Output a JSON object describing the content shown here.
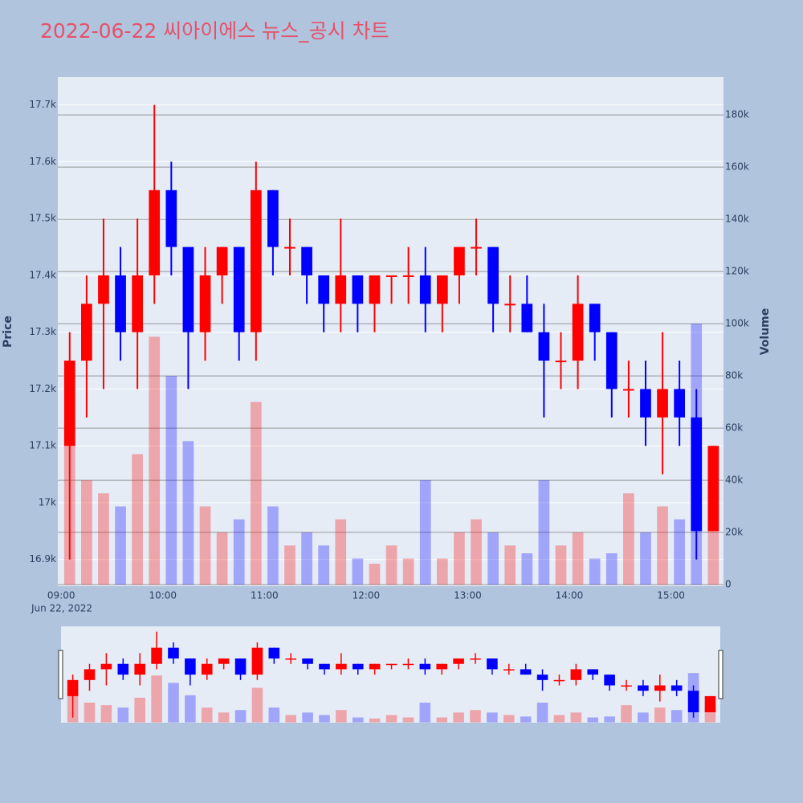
{
  "chart_data": {
    "type": "candlestick",
    "title": "2022-06-22 씨아이에스 뉴스_공시 차트",
    "y_title": "Price",
    "y2_title": "Volume",
    "x_date_label": "Jun 22, 2022",
    "increasing_color": "#ff0000",
    "decreasing_color": "#0000ff",
    "x": [
      "09:00",
      "09:10",
      "09:20",
      "09:30",
      "09:40",
      "09:50",
      "10:00",
      "10:10",
      "10:20",
      "10:30",
      "10:40",
      "10:50",
      "11:00",
      "11:10",
      "11:20",
      "11:30",
      "11:40",
      "11:50",
      "12:00",
      "12:10",
      "12:20",
      "12:30",
      "12:40",
      "12:50",
      "13:00",
      "13:10",
      "13:20",
      "13:30",
      "13:40",
      "13:50",
      "14:00",
      "14:10",
      "14:20",
      "14:30",
      "14:40",
      "14:50",
      "15:00",
      "15:10",
      "15:20"
    ],
    "open": [
      17100,
      17250,
      17350,
      17400,
      17300,
      17400,
      17550,
      17450,
      17300,
      17400,
      17450,
      17300,
      17550,
      17450,
      17450,
      17400,
      17350,
      17400,
      17350,
      17400,
      17400,
      17400,
      17350,
      17400,
      17450,
      17450,
      17350,
      17350,
      17300,
      17250,
      17250,
      17350,
      17300,
      17200,
      17200,
      17150,
      17200,
      17150,
      16950
    ],
    "high": [
      17300,
      17400,
      17500,
      17450,
      17500,
      17700,
      17600,
      17450,
      17450,
      17450,
      17450,
      17600,
      17550,
      17500,
      17450,
      17400,
      17500,
      17400,
      17400,
      17400,
      17450,
      17450,
      17400,
      17450,
      17500,
      17450,
      17400,
      17400,
      17350,
      17300,
      17400,
      17350,
      17300,
      17250,
      17250,
      17300,
      17250,
      17200,
      17100
    ],
    "low": [
      16900,
      17150,
      17200,
      17250,
      17200,
      17350,
      17400,
      17200,
      17250,
      17350,
      17250,
      17250,
      17400,
      17400,
      17350,
      17300,
      17300,
      17300,
      17300,
      17350,
      17350,
      17300,
      17300,
      17350,
      17400,
      17300,
      17300,
      17300,
      17150,
      17200,
      17200,
      17250,
      17150,
      17150,
      17100,
      17050,
      17100,
      16900,
      16950
    ],
    "close": [
      17250,
      17350,
      17400,
      17300,
      17400,
      17550,
      17450,
      17300,
      17400,
      17450,
      17300,
      17550,
      17450,
      17450,
      17400,
      17350,
      17400,
      17350,
      17400,
      17400,
      17400,
      17350,
      17400,
      17450,
      17450,
      17350,
      17350,
      17300,
      17250,
      17250,
      17350,
      17300,
      17200,
      17200,
      17150,
      17200,
      17150,
      16950,
      17100
    ],
    "volume": [
      60000,
      40000,
      35000,
      30000,
      50000,
      95000,
      80000,
      55000,
      30000,
      20000,
      25000,
      70000,
      30000,
      15000,
      20000,
      15000,
      25000,
      10000,
      8000,
      15000,
      10000,
      40000,
      10000,
      20000,
      25000,
      20000,
      15000,
      12000,
      40000,
      15000,
      20000,
      10000,
      12000,
      35000,
      20000,
      30000,
      25000,
      100000,
      30000
    ],
    "xlim": [
      "08:58",
      "15:31"
    ],
    "xticks": [
      "09:00",
      "10:00",
      "11:00",
      "12:00",
      "13:00",
      "14:00",
      "15:00"
    ],
    "ylim": [
      16853,
      17749
    ],
    "yticks": [
      {
        "value": 16900,
        "label": "16.9k"
      },
      {
        "value": 17000,
        "label": "17k"
      },
      {
        "value": 17100,
        "label": "17.1k"
      },
      {
        "value": 17200,
        "label": "17.2k"
      },
      {
        "value": 17300,
        "label": "17.3k"
      },
      {
        "value": 17400,
        "label": "17.4k"
      },
      {
        "value": 17500,
        "label": "17.5k"
      },
      {
        "value": 17600,
        "label": "17.6k"
      },
      {
        "value": 17700,
        "label": "17.7k"
      }
    ],
    "y2lim": [
      -600,
      194500
    ],
    "y2ticks": [
      0,
      {
        "value": 20000,
        "label": "20k"
      },
      {
        "value": 40000,
        "label": "40k"
      },
      {
        "value": 60000,
        "label": "60k"
      },
      {
        "value": 80000,
        "label": "80k"
      },
      {
        "value": 100000,
        "label": "100k"
      },
      {
        "value": 120000,
        "label": "120k"
      },
      {
        "value": 140000,
        "label": "140k"
      },
      {
        "value": 160000,
        "label": "160k"
      },
      {
        "value": 180000,
        "label": "180k"
      }
    ],
    "grid": true,
    "range_slider": true
  }
}
